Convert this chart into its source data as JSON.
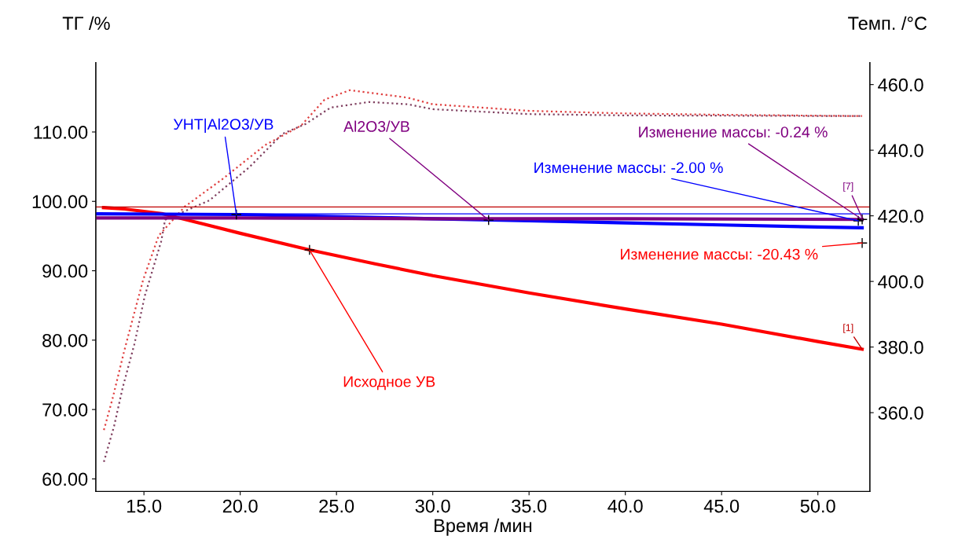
{
  "chart_data": {
    "type": "line",
    "xlabel": "Время /мин",
    "ylabel": "ТГ /%",
    "y2label": "Темп. /°C",
    "xlim": [
      12.5,
      52.7
    ],
    "xticks": [
      {
        "value": 15,
        "label": "15.0"
      },
      {
        "value": 20,
        "label": "20.0"
      },
      {
        "value": 25,
        "label": "25.0"
      },
      {
        "value": 30,
        "label": "30.0"
      },
      {
        "value": 35,
        "label": "35.0"
      },
      {
        "value": 40,
        "label": "40.0"
      },
      {
        "value": 45,
        "label": "45.0"
      },
      {
        "value": 50,
        "label": "50.0"
      }
    ],
    "ylim": [
      58.2,
      120
    ],
    "yticks": [
      {
        "value": 60,
        "label": "60.00"
      },
      {
        "value": 70,
        "label": "70.00"
      },
      {
        "value": 80,
        "label": "80.00"
      },
      {
        "value": 90,
        "label": "90.00"
      },
      {
        "value": 100,
        "label": "100.00"
      },
      {
        "value": 110,
        "label": "110.00"
      }
    ],
    "y2lim": [
      336,
      466.7
    ],
    "y2ticks": [
      {
        "value": 360,
        "label": "360.0"
      },
      {
        "value": 380,
        "label": "380.0"
      },
      {
        "value": 400,
        "label": "400.0"
      },
      {
        "value": 420,
        "label": "420.0"
      },
      {
        "value": 440,
        "label": "440.0"
      },
      {
        "value": 460,
        "label": "460.0"
      }
    ],
    "grid": false,
    "legend": false,
    "series": [
      {
        "color": "#ff0000",
        "line_style": "solid",
        "x": [
          12.9,
          14,
          16,
          18,
          20,
          23.6,
          27,
          30,
          35,
          40,
          45,
          50,
          52.3
        ],
        "values": [
          99.1,
          98.9,
          98.2,
          96.8,
          95.4,
          93.0,
          91.0,
          89.3,
          86.8,
          84.5,
          82.3,
          79.8,
          78.7
        ]
      },
      {
        "color": "#0000ff",
        "line_style": "solid",
        "x": [
          12.6,
          20,
          23.3,
          30,
          35,
          40,
          45,
          50,
          52.3
        ],
        "values": [
          98.2,
          98.1,
          97.9,
          97.5,
          97.2,
          96.9,
          96.6,
          96.3,
          96.2
        ]
      },
      {
        "color": "#800080",
        "line_style": "solid",
        "x": [
          12.6,
          20,
          30,
          40,
          52.3
        ],
        "values": [
          97.6,
          97.6,
          97.5,
          97.5,
          97.4
        ]
      },
      {
        "color": "#e04040",
        "line_style": "dotted",
        "axis": "y2",
        "x": [
          12.92,
          13.37,
          13.98,
          14.59,
          14.96,
          15.77,
          17.12,
          19.08,
          21.28,
          23.16,
          24.38,
          25.69,
          28.7,
          30,
          35,
          40,
          45,
          52.3
        ],
        "values": [
          354.7,
          364.3,
          378.9,
          392.4,
          400.5,
          414,
          422.8,
          431.2,
          441.5,
          447.5,
          455.4,
          458.3,
          456,
          454,
          452,
          451.2,
          450.8,
          450.4
        ]
      },
      {
        "color": "#804060",
        "line_style": "dotted",
        "axis": "y2",
        "x": [
          12.92,
          13.45,
          13.9,
          14.51,
          15.04,
          15.9,
          16.1,
          18.4,
          20.47,
          22.2,
          23.4,
          24.7,
          26.7,
          28.7,
          30,
          35,
          40,
          52.3
        ],
        "values": [
          345,
          355.9,
          367.7,
          381,
          395.5,
          412.3,
          418.8,
          424.7,
          434.8,
          445,
          448,
          453,
          454.7,
          454,
          452.5,
          451,
          450.6,
          450.4
        ]
      }
    ],
    "ref_lines": [
      {
        "axis": "y",
        "value": 99.2,
        "color": "#c00000"
      },
      {
        "axis": "y",
        "value": 98.2,
        "color": "#0000ff"
      }
    ],
    "annotations": [
      {
        "text": "УНТ|Al2O3/УВ",
        "x": 19.8,
        "y": 98.1
      },
      {
        "text": "Al2O3/УВ",
        "x": 32.9,
        "y": 97.3
      },
      {
        "text": "Исходное УВ",
        "x": 23.6,
        "y": 93.0
      },
      {
        "text": "Изменение массы: -0.24 %",
        "x": 52.3,
        "y": 97.4
      },
      {
        "text": "Изменение массы: -2.00 %",
        "x": 52.1,
        "y": 97.2
      },
      {
        "text": "Изменение массы: -20.43 %",
        "x": 52.3,
        "y": 94.0
      },
      {
        "text": "[1]",
        "x": 52.3,
        "y": 78.7
      },
      {
        "text": "[7]",
        "x": 52.3,
        "y": 97.6
      }
    ]
  }
}
